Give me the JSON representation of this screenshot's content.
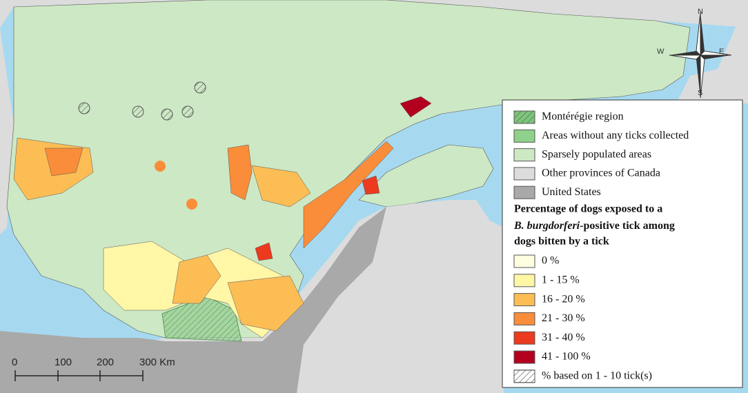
{
  "legend": {
    "areas": [
      {
        "label": "Montérégie region",
        "color": "#7cc67a",
        "hatch": true
      },
      {
        "label": "Areas without any ticks collected",
        "color": "#8fd18a",
        "hatch": false
      },
      {
        "label": "Sparsely populated areas",
        "color": "#cde8c4",
        "hatch": false
      },
      {
        "label": "Other provinces of Canada",
        "color": "#dcdcdc",
        "hatch": false
      },
      {
        "label": "United States",
        "color": "#a9a9a9",
        "hatch": false
      }
    ],
    "title": {
      "line1": "Percentage of dogs exposed to a",
      "italic": "B. burgdorferi",
      "line2": "-positive tick among",
      "line3": "dogs bitten by a tick"
    },
    "classes": [
      {
        "label": "0 %",
        "color": "#fffde0",
        "hatch": false
      },
      {
        "label": "1 - 15 %",
        "color": "#fff6a6",
        "hatch": false
      },
      {
        "label": "16 - 20 %",
        "color": "#fdbd55",
        "hatch": false
      },
      {
        "label": "21 - 30 %",
        "color": "#f98d3a",
        "hatch": false
      },
      {
        "label": "31 - 40 %",
        "color": "#ec3a1e",
        "hatch": false
      },
      {
        "label": "41 - 100 %",
        "color": "#b3001f",
        "hatch": false
      },
      {
        "label": "% based on 1 - 10 tick(s)",
        "color": "#ffffff",
        "hatch": true
      }
    ]
  },
  "scale_bar": {
    "labels": [
      "0",
      "100",
      "200",
      "300 Km"
    ]
  },
  "compass": {
    "north": "N",
    "east": "E",
    "south": "S",
    "west": "W"
  }
}
